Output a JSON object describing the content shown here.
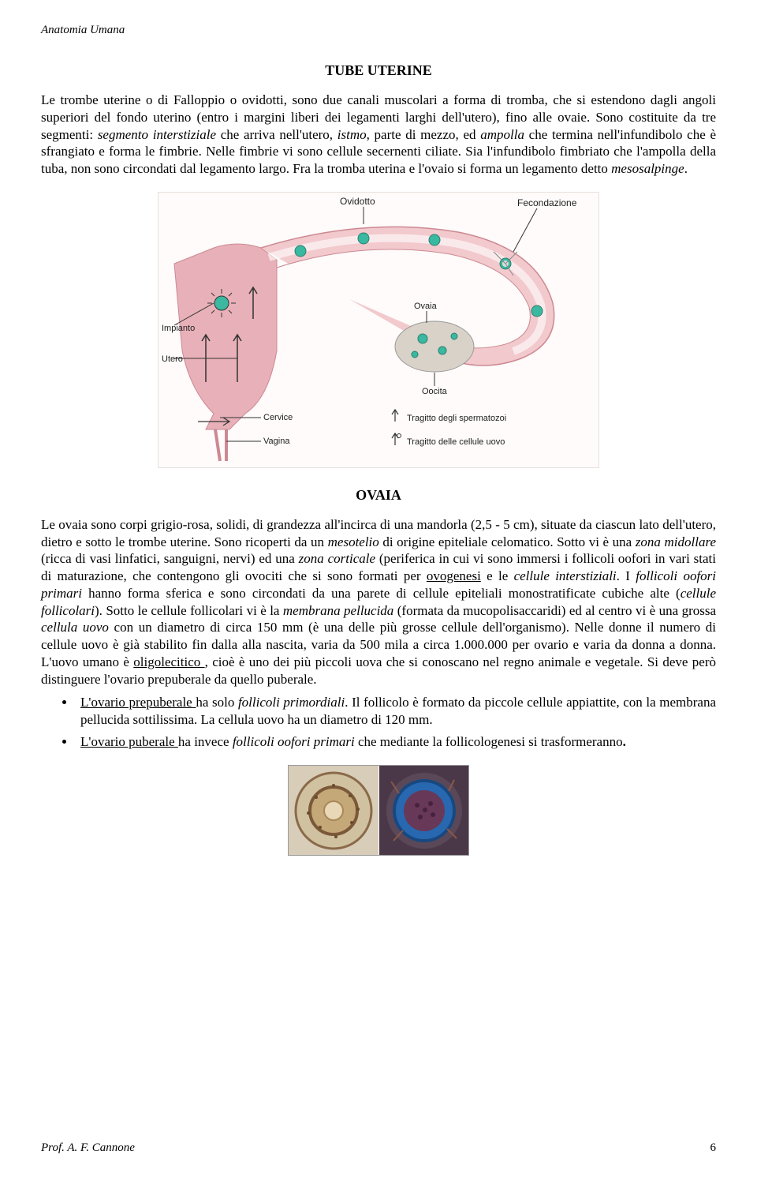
{
  "header": "Anatomia Umana",
  "title1": "TUBE  UTERINE",
  "para1_parts": [
    {
      "t": "Le trombe uterine o di Falloppio o ovidotti, sono due canali muscolari a forma di tromba, che si estendono dagli angoli superiori del fondo uterino (entro i margini liberi dei legamenti larghi dell'utero), fino alle ovaie. Sono costituite da tre segmenti: ",
      "s": ""
    },
    {
      "t": "segmento interstiziale",
      "s": "italic"
    },
    {
      "t": " che arriva nell'utero, ",
      "s": ""
    },
    {
      "t": "istmo",
      "s": "italic"
    },
    {
      "t": ", parte di mezzo, ed ",
      "s": ""
    },
    {
      "t": "ampolla",
      "s": "italic"
    },
    {
      "t": " che termina nell'infundibolo che è sfrangiato e forma le fimbrie. Nelle fimbrie vi sono cellule secernenti ciliate. Sia l'infundibolo fimbriato che l'ampolla della tuba, non sono circondati dal legamento largo. Fra la tromba uterina e l'ovaio si forma un legamento detto ",
      "s": ""
    },
    {
      "t": "mesosalpinge",
      "s": "italic"
    },
    {
      "t": ".",
      "s": ""
    }
  ],
  "diagram": {
    "labels": {
      "ovidotto": "Ovidotto",
      "fecondazione": "Fecondazione",
      "impianto": "Impianto",
      "utero": "Utero",
      "cervice": "Cervice",
      "vagina": "Vagina",
      "ovaia": "Ovaia",
      "oocita": "Oocita",
      "tragitto_sperma": "Tragitto degli spermatozoi",
      "tragitto_uovo": "Tragitto delle cellule uovo",
      "arrow_up": "↑",
      "arrow_qmark": "↑?"
    },
    "colors": {
      "tube_fill": "#f2c9cd",
      "tube_stroke": "#cc8993",
      "uterus_fill": "#e8b0b8",
      "ovary_fill": "#d8d2c8",
      "follicle_fill": "#3ab8a0",
      "line": "#333333",
      "bg": "#fefbfa"
    }
  },
  "title2": "OVAIA",
  "para2_parts": [
    {
      "t": "Le ovaia sono corpi grigio-rosa, solidi, di grandezza all'incirca di una mandorla (2,5 - 5 cm), situate da ciascun lato dell'utero, dietro e sotto le trombe uterine. Sono ricoperti da un ",
      "s": ""
    },
    {
      "t": "mesotelio",
      "s": "italic"
    },
    {
      "t": " di origine epiteliale celomatico. Sotto vi è una ",
      "s": ""
    },
    {
      "t": "zona midollare",
      "s": "italic"
    },
    {
      "t": " (ricca di vasi linfatici, sanguigni, nervi) ed una ",
      "s": ""
    },
    {
      "t": "zona corticale",
      "s": "italic"
    },
    {
      "t": " (periferica in cui vi sono immersi i follicoli oofori in vari stati di maturazione, che contengono gli ovociti che si sono formati per ",
      "s": ""
    },
    {
      "t": "ovogenesi",
      "s": "underline"
    },
    {
      "t": " e le ",
      "s": ""
    },
    {
      "t": "cellule interstiziali",
      "s": "italic"
    },
    {
      "t": ". I ",
      "s": ""
    },
    {
      "t": "follicoli oofori primari",
      "s": "italic"
    },
    {
      "t": " hanno forma sferica e sono circondati da una parete di cellule epiteliali monostratificate cubiche alte (",
      "s": ""
    },
    {
      "t": "cellule follicolari",
      "s": "italic"
    },
    {
      "t": "). Sotto le cellule follicolari vi è la ",
      "s": ""
    },
    {
      "t": "membrana pellucida",
      "s": "italic"
    },
    {
      "t": " (formata da mucopolisaccaridi) ed al centro vi è una grossa ",
      "s": ""
    },
    {
      "t": "cellula uovo",
      "s": "italic"
    },
    {
      "t": " con un diametro di circa 150 mm (è una delle più grosse cellule dell'organismo). Nelle donne il numero di cellule uovo è già stabilito fin dalla alla nascita, varia da 500 mila a circa 1.000.000 per ovario e varia da donna a donna. L'uovo umano è ",
      "s": ""
    },
    {
      "t": "oligolecitico ",
      "s": "underline"
    },
    {
      "t": ", cioè è uno dei più piccoli uova che si conoscano nel regno animale e vegetale. Si deve però distinguere l'ovario prepuberale da quello puberale.",
      "s": ""
    }
  ],
  "bullet1_parts": [
    {
      "t": "L'ovario prepuberale ",
      "s": "underline"
    },
    {
      "t": "ha solo ",
      "s": ""
    },
    {
      "t": "follicoli primordiali",
      "s": "italic"
    },
    {
      "t": ". Il follicolo è formato da piccole cellule appiattite, con la membrana pellucida sottilissima. La cellula uovo ha un diametro di 120 mm.",
      "s": ""
    }
  ],
  "bullet2_parts": [
    {
      "t": "L'ovario puberale ",
      "s": "underline"
    },
    {
      "t": "ha invece ",
      "s": ""
    },
    {
      "t": "follicoli oofori primari",
      "s": "italic"
    },
    {
      "t": " che mediante la follicologenesi si trasformeranno",
      "s": ""
    },
    {
      "t": ".",
      "s": "bold"
    }
  ],
  "footer_left": "Prof. A. F. Cannone",
  "footer_page": "6"
}
